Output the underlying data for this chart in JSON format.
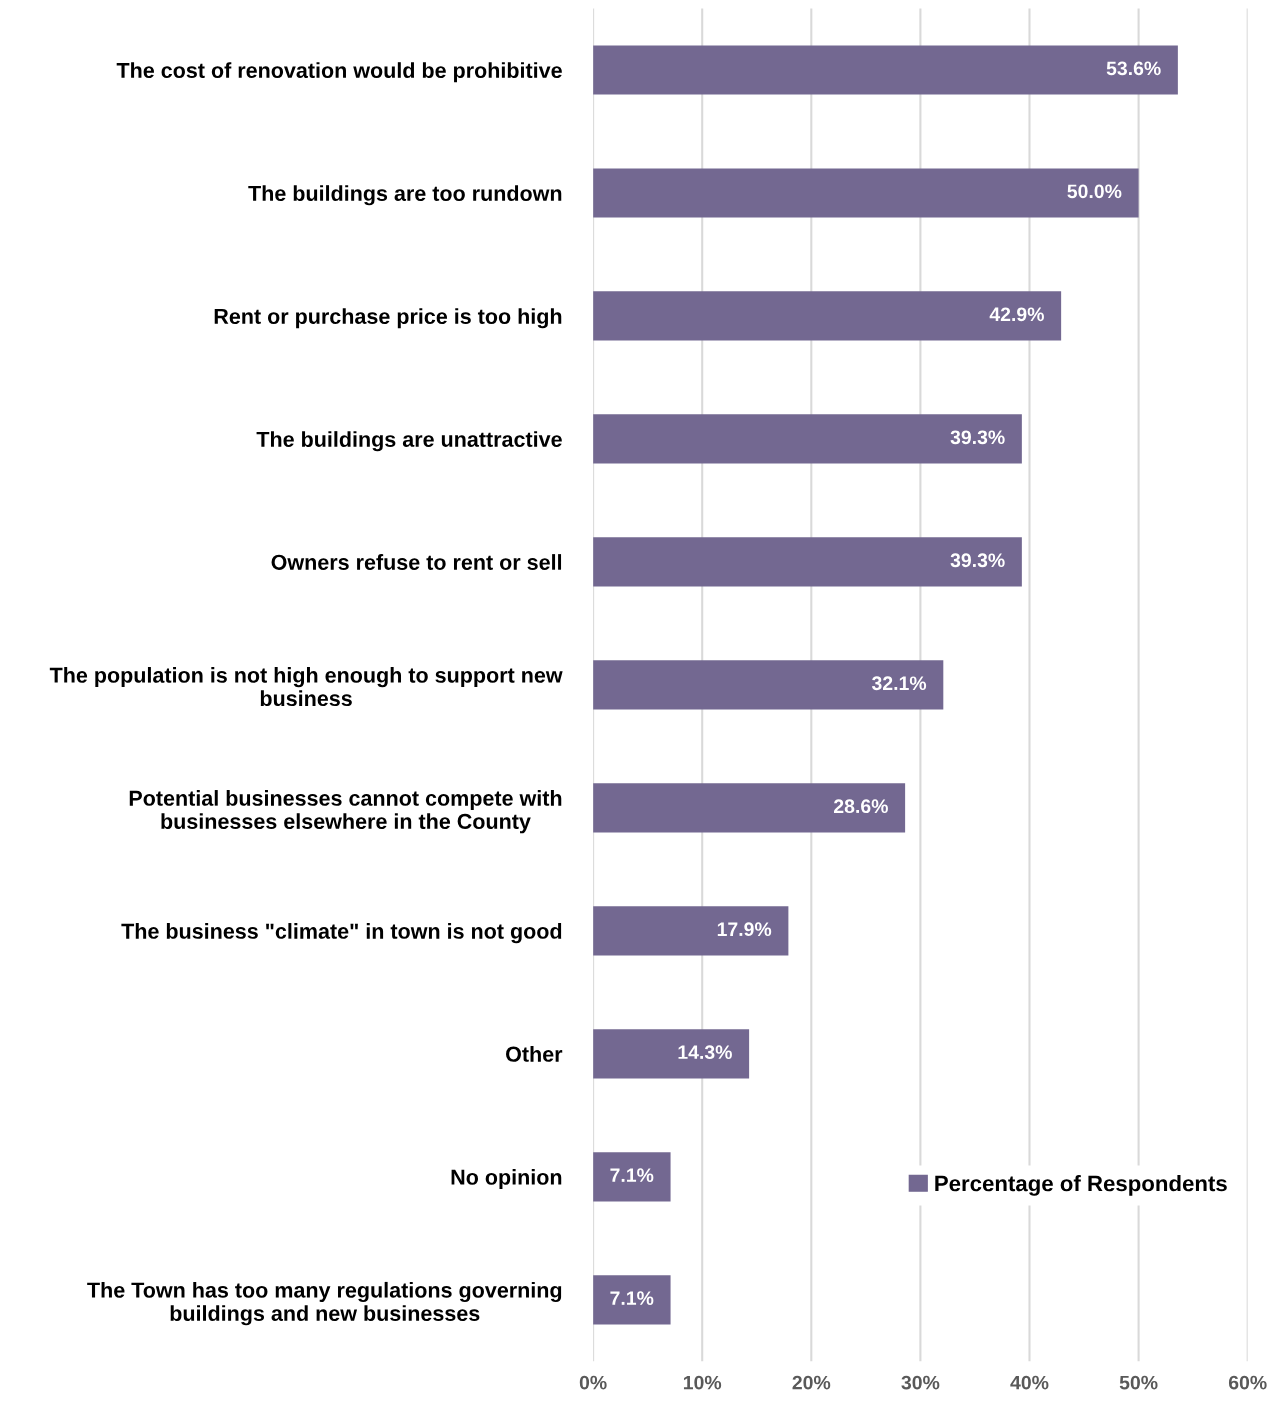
{
  "chart_data": {
    "type": "bar",
    "orientation": "horizontal",
    "categories": [
      "The cost of renovation would be prohibitive",
      "The buildings are too rundown",
      "Rent or purchase price is too high",
      "The buildings are unattractive",
      "Owners refuse to rent or sell",
      "The population is not high enough to support new\nbusiness",
      "Potential businesses cannot compete with\nbusinesses elsewhere in the County",
      "The business \"climate\" in town is not good",
      "Other",
      "No opinion",
      "The Town has too many regulations governing\nbuildings and new businesses"
    ],
    "series": [
      {
        "name": "Percentage of Respondents",
        "color": "#736891",
        "values": [
          53.6,
          50.0,
          42.9,
          39.3,
          39.3,
          32.1,
          28.6,
          17.9,
          14.3,
          7.1,
          7.1
        ],
        "value_labels": [
          "53.6%",
          "50.0%",
          "42.9%",
          "39.3%",
          "39.3%",
          "32.1%",
          "28.6%",
          "17.9%",
          "14.3%",
          "7.1%",
          "7.1%"
        ]
      }
    ],
    "xlim": [
      0,
      60
    ],
    "xticks": [
      {
        "value": 0,
        "label": "0%"
      },
      {
        "value": 10,
        "label": "10%"
      },
      {
        "value": 20,
        "label": "20%"
      },
      {
        "value": 30,
        "label": "30%"
      },
      {
        "value": 40,
        "label": "40%"
      },
      {
        "value": 50,
        "label": "50%"
      },
      {
        "value": 60,
        "label": "60%"
      }
    ],
    "grid": "x",
    "legend": "bottom right"
  }
}
